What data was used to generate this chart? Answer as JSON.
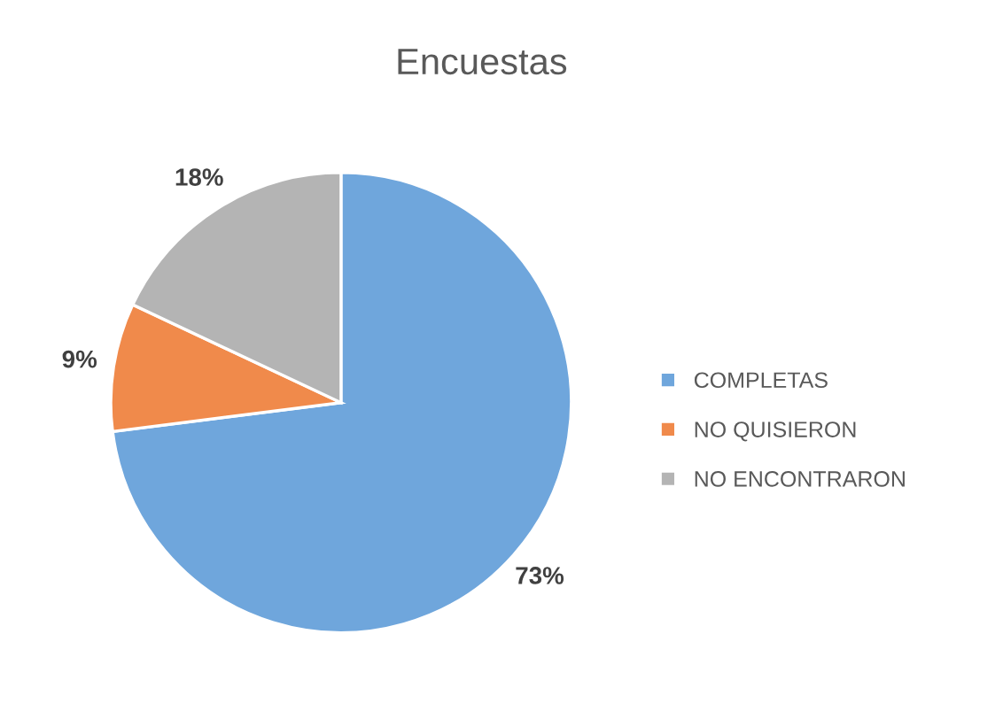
{
  "chart_data": {
    "type": "pie",
    "title": "Encuestas",
    "categories": [
      "COMPLETAS",
      "NO QUISIERON",
      "NO ENCONTRARON"
    ],
    "values": [
      73,
      9,
      18
    ],
    "colors": [
      "#6fa6dc",
      "#f08a4b",
      "#b4b4b4"
    ],
    "value_labels": [
      "73%",
      "9%",
      "18%"
    ],
    "legend": "right"
  }
}
